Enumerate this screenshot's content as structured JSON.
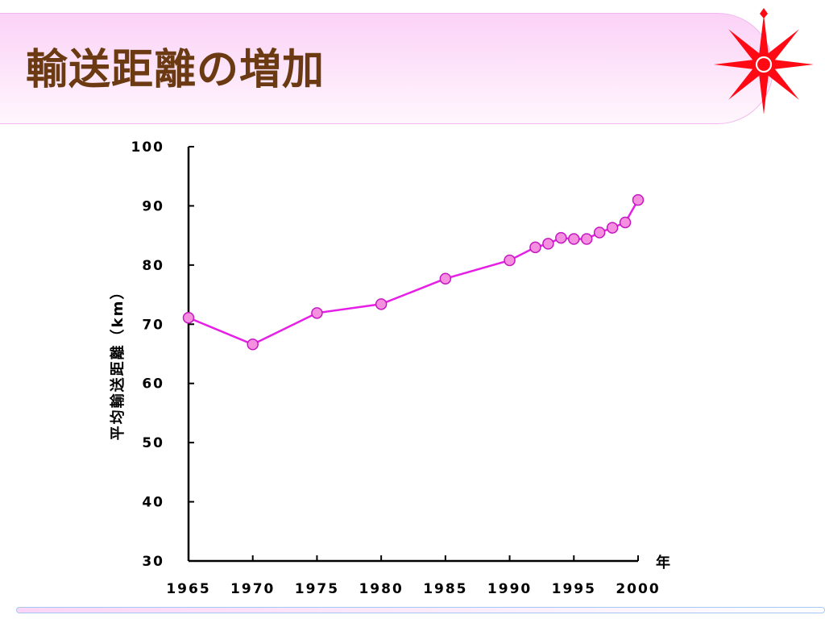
{
  "slide": {
    "title": "輸送距離の増加"
  },
  "colors": {
    "line": "#e61ee6",
    "marker_fill": "#f58fe0",
    "marker_stroke": "#c418c0",
    "compass": "#ff0a14"
  },
  "icons": {
    "decoration": "compass-icon"
  },
  "chart_data": {
    "type": "line",
    "ylabel": "平均輸送距離（km）",
    "xlabel": "年",
    "ylim": [
      30,
      100
    ],
    "yticks": [
      30,
      40,
      50,
      60,
      70,
      80,
      90,
      100
    ],
    "xlim": [
      1965,
      2000
    ],
    "xticks": [
      1965,
      1970,
      1975,
      1980,
      1985,
      1990,
      1995,
      2000
    ],
    "grid": false,
    "series": [
      {
        "x": [
          1965,
          1970,
          1975,
          1980,
          1985,
          1990,
          1992,
          1993,
          1994,
          1995,
          1996,
          1997,
          1998,
          1999,
          2000
        ],
        "values": [
          71.1,
          66.6,
          71.9,
          73.4,
          77.7,
          80.8,
          83.0,
          83.6,
          84.6,
          84.4,
          84.4,
          85.5,
          86.3,
          87.2,
          91.0
        ]
      }
    ]
  }
}
